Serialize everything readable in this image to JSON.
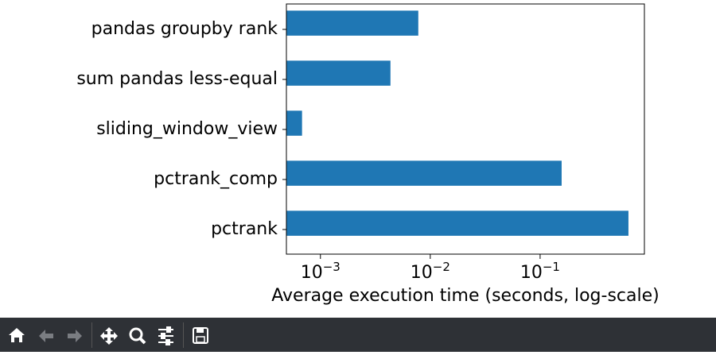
{
  "chart_data": {
    "type": "barh",
    "categories": [
      "pandas groupby rank",
      "sum pandas less-equal",
      "sliding_window_view",
      "pctrank_comp",
      "pctrank"
    ],
    "values": [
      0.00778,
      0.00434,
      0.00068,
      0.157,
      0.637
    ],
    "color": "#1f77b4",
    "x_label": "Average execution time (seconds, log-scale)",
    "xscale": "log",
    "xlim": [
      0.00049,
      0.89
    ],
    "xticks": [
      {
        "value": 0.001,
        "label": "10−3"
      },
      {
        "value": 0.01,
        "label": "10−2"
      },
      {
        "value": 0.1,
        "label": "10−1"
      }
    ]
  }
}
